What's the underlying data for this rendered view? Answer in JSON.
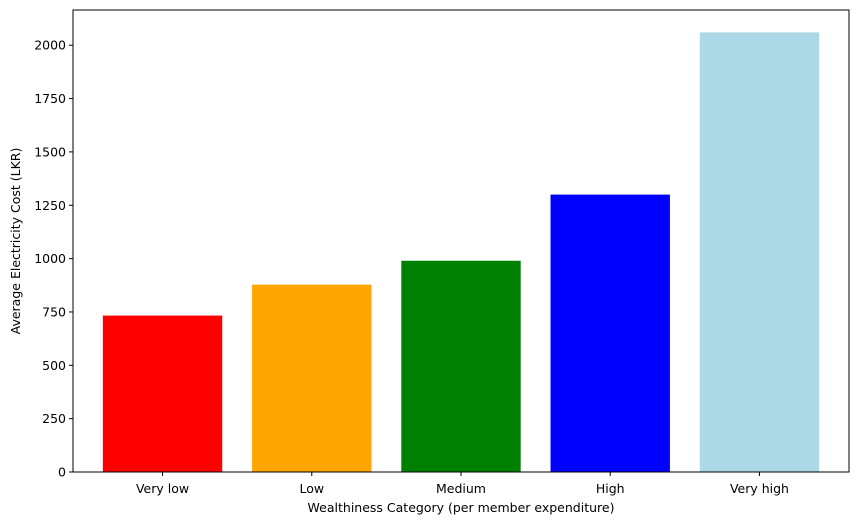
{
  "chart_data": {
    "type": "bar",
    "title": "",
    "xlabel": "Wealthiness Category (per member expenditure)",
    "ylabel": "Average Electricity Cost (LKR)",
    "categories": [
      "Very low",
      "Low",
      "Medium",
      "High",
      "Very high"
    ],
    "values": [
      733,
      878,
      990,
      1300,
      2060
    ],
    "colors": [
      "#ff0000",
      "#ffa500",
      "#008000",
      "#0000ff",
      "#add8e6"
    ],
    "ylim": [
      0,
      2165
    ],
    "yticks": [
      0,
      250,
      500,
      750,
      1000,
      1250,
      1500,
      1750,
      2000
    ],
    "grid": false,
    "legend": "none"
  }
}
